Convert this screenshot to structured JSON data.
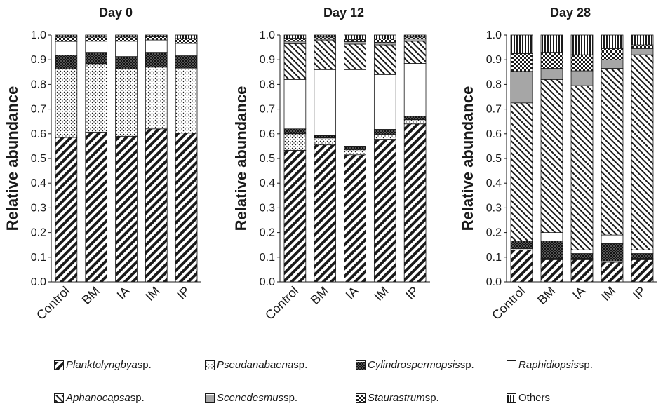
{
  "chart_data": [
    {
      "type": "bar",
      "title": "Day 0",
      "ylabel": "Relative abundance",
      "ylim": [
        0,
        1.0
      ],
      "yticks": [
        "0.0",
        "0.1",
        "0.2",
        "0.3",
        "0.4",
        "0.5",
        "0.6",
        "0.7",
        "0.8",
        "0.9",
        "1.0"
      ],
      "categories": [
        "Control",
        "BM",
        "IA",
        "IM",
        "IP"
      ],
      "stacked": true,
      "series": [
        {
          "name": "Planktolyngbya sp.",
          "values": [
            0.585,
            0.607,
            0.59,
            0.62,
            0.603
          ]
        },
        {
          "name": "Pseudanabaena sp.",
          "values": [
            0.277,
            0.277,
            0.273,
            0.25,
            0.263
          ]
        },
        {
          "name": "Cylindrospermopsis sp.",
          "values": [
            0.057,
            0.046,
            0.05,
            0.06,
            0.05
          ]
        },
        {
          "name": "Raphidiopsis sp.",
          "values": [
            0.055,
            0.045,
            0.062,
            0.05,
            0.05
          ]
        },
        {
          "name": "Aphanocapsa sp.",
          "values": [
            0,
            0,
            0,
            0,
            0
          ]
        },
        {
          "name": "Scenedesmus sp.",
          "values": [
            0,
            0,
            0,
            0,
            0
          ]
        },
        {
          "name": "Staurastrum sp.",
          "values": [
            0.018,
            0.017,
            0.017,
            0.013,
            0.02
          ]
        },
        {
          "name": "Others",
          "values": [
            0.008,
            0.008,
            0.008,
            0.007,
            0.014
          ]
        }
      ]
    },
    {
      "type": "bar",
      "title": "Day 12",
      "ylabel": "Relative abundance",
      "ylim": [
        0,
        1.0
      ],
      "yticks": [
        "0.0",
        "0.1",
        "0.2",
        "0.3",
        "0.4",
        "0.5",
        "0.6",
        "0.7",
        "0.8",
        "0.9",
        "1.0"
      ],
      "categories": [
        "Control",
        "BM",
        "IA",
        "IM",
        "IP"
      ],
      "stacked": true,
      "series": [
        {
          "name": "Planktolyngbya sp.",
          "values": [
            0.533,
            0.555,
            0.515,
            0.578,
            0.64
          ]
        },
        {
          "name": "Pseudanabaena sp.",
          "values": [
            0.067,
            0.028,
            0.02,
            0.02,
            0.017
          ]
        },
        {
          "name": "Cylindrospermopsis sp.",
          "values": [
            0.02,
            0.01,
            0.015,
            0.02,
            0.013
          ]
        },
        {
          "name": "Raphidiopsis sp.",
          "values": [
            0.2,
            0.267,
            0.31,
            0.222,
            0.215
          ]
        },
        {
          "name": "Aphanocapsa sp.",
          "values": [
            0.145,
            0.12,
            0.103,
            0.12,
            0.09
          ]
        },
        {
          "name": "Scenedesmus sp.",
          "values": [
            0.01,
            0.005,
            0.01,
            0.01,
            0.01
          ]
        },
        {
          "name": "Staurastrum sp.",
          "values": [
            0.012,
            0.007,
            0.009,
            0.015,
            0.007
          ]
        },
        {
          "name": "Others",
          "values": [
            0.013,
            0.008,
            0.018,
            0.015,
            0.008
          ]
        }
      ]
    },
    {
      "type": "bar",
      "title": "Day 28",
      "ylabel": "Relative abundance",
      "ylim": [
        0,
        1.0
      ],
      "yticks": [
        "0.0",
        "0.1",
        "0.2",
        "0.3",
        "0.4",
        "0.5",
        "0.6",
        "0.7",
        "0.8",
        "0.9",
        "1.0"
      ],
      "categories": [
        "Control",
        "BM",
        "IA",
        "IM",
        "IP"
      ],
      "stacked": true,
      "series": [
        {
          "name": "Planktolyngbya sp.",
          "values": [
            0.13,
            0.09,
            0.09,
            0.08,
            0.09
          ]
        },
        {
          "name": "Pseudanabaena sp.",
          "values": [
            0.005,
            0.005,
            0.005,
            0.005,
            0.005
          ]
        },
        {
          "name": "Cylindrospermopsis sp.",
          "values": [
            0.03,
            0.07,
            0.02,
            0.07,
            0.02
          ]
        },
        {
          "name": "Raphidiopsis sp.",
          "values": [
            0,
            0.035,
            0.015,
            0.035,
            0.015
          ]
        },
        {
          "name": "Aphanocapsa sp.",
          "values": [
            0.56,
            0.62,
            0.665,
            0.675,
            0.79
          ]
        },
        {
          "name": "Scenedesmus sp.",
          "values": [
            0.128,
            0.045,
            0.06,
            0.035,
            0.025
          ]
        },
        {
          "name": "Staurastrum sp.",
          "values": [
            0.072,
            0.065,
            0.065,
            0.045,
            0.015
          ]
        },
        {
          "name": "Others",
          "values": [
            0.075,
            0.07,
            0.08,
            0.055,
            0.04
          ]
        }
      ]
    }
  ],
  "legend": {
    "items": [
      {
        "genus": "Planktolyngbya",
        "suffix": " sp.",
        "pattern": "diag-bold"
      },
      {
        "genus": "Pseudanabaena",
        "suffix": " sp.",
        "pattern": "dots"
      },
      {
        "genus": "Cylindrospermopsis",
        "suffix": " sp.",
        "pattern": "dark-dots"
      },
      {
        "genus": "Raphidiopsis",
        "suffix": " sp.",
        "pattern": "white"
      },
      {
        "genus": "Aphanocapsa",
        "suffix": " sp.",
        "pattern": "diag-thin"
      },
      {
        "genus": "Scenedesmus",
        "suffix": " sp.",
        "pattern": "gray"
      },
      {
        "genus": "Staurastrum",
        "suffix": " sp.",
        "pattern": "checker"
      },
      {
        "genus": "",
        "suffix": "Others",
        "pattern": "vstripes"
      }
    ]
  },
  "colors": {
    "ink": "#1a1a1a",
    "gray_fill": "#a6a6a6",
    "background": "#ffffff"
  }
}
